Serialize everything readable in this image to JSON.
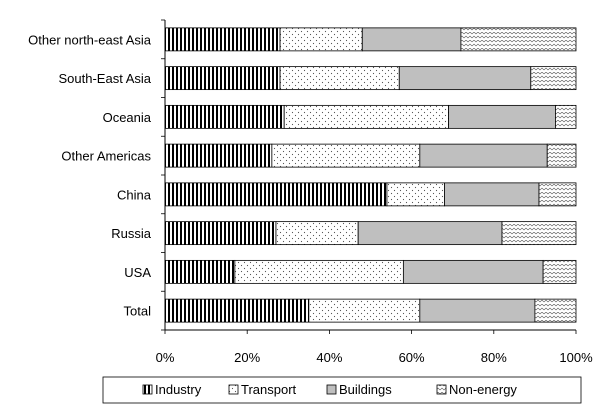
{
  "chart_data": {
    "type": "bar",
    "orientation": "horizontal",
    "stacked": true,
    "percent": true,
    "categories": [
      "Other north-east Asia",
      "South-East Asia",
      "Oceania",
      "Other Americas",
      "China",
      "Russia",
      "USA",
      "Total"
    ],
    "series": [
      {
        "name": "Industry",
        "values": [
          28,
          28,
          29,
          26,
          54,
          27,
          17,
          35
        ],
        "pattern": "vertical-stripes",
        "color": "#000000"
      },
      {
        "name": "Transport",
        "values": [
          20,
          29,
          40,
          36,
          14,
          20,
          41,
          27
        ],
        "pattern": "dots",
        "color": "#ffffff"
      },
      {
        "name": "Buildings",
        "values": [
          24,
          32,
          26,
          31,
          23,
          35,
          34,
          28
        ],
        "pattern": "solid",
        "color": "#bfbfbf"
      },
      {
        "name": "Non-energy",
        "values": [
          28,
          11,
          5,
          7,
          9,
          18,
          8,
          10
        ],
        "pattern": "zigzag",
        "color": "#ffffff"
      }
    ],
    "xlim": [
      0,
      100
    ],
    "xticks": [
      "0%",
      "20%",
      "40%",
      "60%",
      "80%",
      "100%"
    ],
    "grid": false,
    "legend_position": "bottom",
    "title": "",
    "xlabel": "",
    "ylabel": ""
  }
}
